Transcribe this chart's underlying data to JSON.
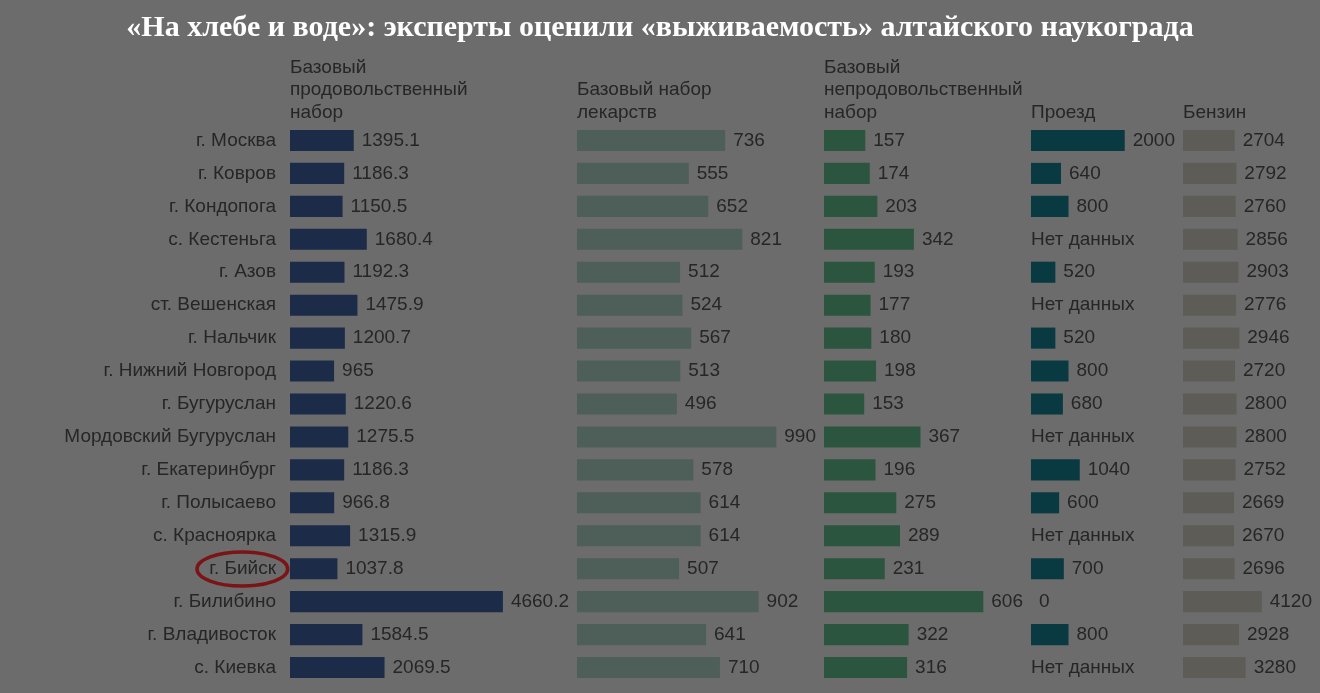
{
  "chart_data": [
    {
      "type": "other",
      "title": "«На хлебе и воде»: эксперты оценили «выживаемость» алтайского наукограда"
    },
    {
      "type": "bar",
      "orientation": "horizontal",
      "title": "Базовый продовольственный набор",
      "categories": [
        "г. Москва",
        "г. Ковров",
        "г. Кондопога",
        "с. Кестеньга",
        "г. Азов",
        "ст. Вешенская",
        "г. Нальчик",
        "г. Нижний Новгород",
        "г. Бугуруслан",
        "Мордовский Бугуруслан",
        "г. Екатеринбург",
        "г. Полысаево",
        "с. Красноярка",
        "г. Бийск",
        "г. Билибино",
        "г. Владивосток",
        "с. Киевка"
      ],
      "values": [
        1395.1,
        1186.3,
        1150.5,
        1680.4,
        1192.3,
        1475.9,
        1200.7,
        965,
        1220.6,
        1275.5,
        1186.3,
        966.8,
        1315.9,
        1037.8,
        4660.2,
        1584.5,
        2069.5
      ],
      "color": "#1c2b48",
      "data_labels": true,
      "tick_labels": "y"
    },
    {
      "type": "bar",
      "orientation": "horizontal",
      "title": "Базовый набор лекарств",
      "categories": [
        null,
        null,
        null,
        null,
        null,
        null,
        null,
        null,
        null,
        null,
        null,
        null,
        null,
        null,
        null,
        null,
        null
      ],
      "values": [
        736,
        555,
        652,
        821,
        512,
        524,
        567,
        513,
        496,
        990,
        578,
        614,
        614,
        507,
        902,
        641,
        710
      ],
      "color": "#4e5e59",
      "data_labels": true,
      "tick_labels": false
    },
    {
      "type": "bar",
      "orientation": "horizontal",
      "title": "Базовый непродовольственный набор",
      "categories": [
        null,
        null,
        null,
        null,
        null,
        null,
        null,
        null,
        null,
        null,
        null,
        null,
        null,
        null,
        null,
        null,
        null
      ],
      "values": [
        157,
        174,
        203,
        342,
        193,
        177,
        180,
        198,
        153,
        367,
        196,
        275,
        289,
        231,
        606,
        322,
        316
      ],
      "color": "#2c553f",
      "data_labels": true,
      "tick_labels": false
    },
    {
      "type": "bar",
      "orientation": "horizontal",
      "title": "Проезд",
      "categories": [
        null,
        null,
        null,
        null,
        null,
        null,
        null,
        null,
        null,
        null,
        null,
        null,
        null,
        null,
        null,
        null,
        null
      ],
      "values": [
        2000,
        640,
        800,
        null,
        520,
        null,
        520,
        800,
        680,
        null,
        1040,
        600,
        null,
        700,
        0,
        800,
        null
      ],
      "value_labels": [
        "2000",
        "640",
        "800",
        "Нет данных",
        "520",
        "Нет данных",
        "520",
        "800",
        "680",
        "Нет данных",
        "1040",
        "600",
        "Нет данных",
        "700",
        "0",
        "800",
        "Нет данных"
      ],
      "color": "#0a3a41",
      "tick_labels": false
    },
    {
      "type": "bar",
      "orientation": "horizontal",
      "title": "Бензин",
      "categories": [
        null,
        null,
        null,
        null,
        null,
        null,
        null,
        null,
        null,
        null,
        null,
        null,
        null,
        null,
        null,
        null,
        null
      ],
      "values": [
        2704,
        2792,
        2760,
        2856,
        2903,
        2776,
        2946,
        2720,
        2800,
        2800,
        2752,
        2669,
        2670,
        2696,
        4120,
        2928,
        3280
      ],
      "color": "#5d5c56",
      "data_labels": true,
      "tick_labels": false
    }
  ]
}
